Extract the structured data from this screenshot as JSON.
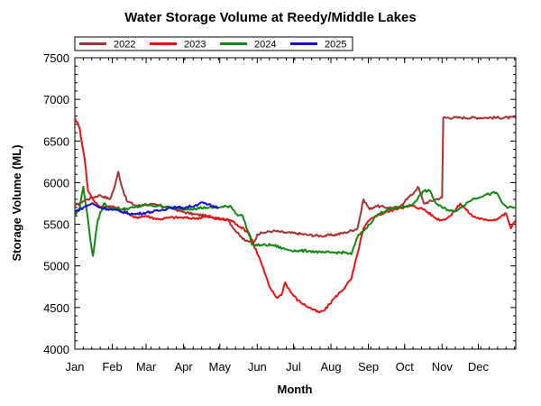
{
  "chart_data": {
    "type": "line",
    "title": "Water Storage Volume at Reedy/Middle Lakes",
    "xlabel": "Month",
    "ylabel": "Storage Volume (ML)",
    "x_tick_labels": [
      "Jan",
      "Feb",
      "Mar",
      "Apr",
      "May",
      "Jun",
      "Jul",
      "Aug",
      "Sep",
      "Oct",
      "Nov",
      "Dec"
    ],
    "x_unit": "day of year",
    "xlim": [
      1,
      366
    ],
    "ylim": [
      4000,
      7500
    ],
    "y_ticks": [
      4000,
      4500,
      5000,
      5500,
      6000,
      6500,
      7000,
      7500
    ],
    "legend_position": "top-left",
    "grid": false,
    "series": [
      {
        "name": "2022",
        "color": "#a83232",
        "points": [
          [
            1,
            5720
          ],
          [
            8,
            5780
          ],
          [
            15,
            5820
          ],
          [
            22,
            5850
          ],
          [
            30,
            5800
          ],
          [
            34,
            5950
          ],
          [
            37,
            6130
          ],
          [
            40,
            5950
          ],
          [
            44,
            5780
          ],
          [
            52,
            5720
          ],
          [
            60,
            5740
          ],
          [
            70,
            5730
          ],
          [
            80,
            5700
          ],
          [
            90,
            5650
          ],
          [
            100,
            5620
          ],
          [
            110,
            5600
          ],
          [
            120,
            5580
          ],
          [
            128,
            5550
          ],
          [
            135,
            5400
          ],
          [
            142,
            5300
          ],
          [
            150,
            5300
          ],
          [
            152,
            5380
          ],
          [
            158,
            5400
          ],
          [
            165,
            5420
          ],
          [
            175,
            5400
          ],
          [
            185,
            5390
          ],
          [
            195,
            5370
          ],
          [
            205,
            5360
          ],
          [
            215,
            5370
          ],
          [
            225,
            5400
          ],
          [
            235,
            5450
          ],
          [
            240,
            5800
          ],
          [
            245,
            5680
          ],
          [
            250,
            5720
          ],
          [
            260,
            5700
          ],
          [
            270,
            5700
          ],
          [
            275,
            5800
          ],
          [
            280,
            5850
          ],
          [
            285,
            5950
          ],
          [
            290,
            5750
          ],
          [
            300,
            5800
          ],
          [
            305,
            5820
          ],
          [
            306,
            6780
          ],
          [
            320,
            6780
          ],
          [
            340,
            6780
          ],
          [
            366,
            6780
          ]
        ]
      },
      {
        "name": "2023",
        "color": "#ee1111",
        "points": [
          [
            1,
            6780
          ],
          [
            5,
            6650
          ],
          [
            9,
            6300
          ],
          [
            12,
            5900
          ],
          [
            16,
            5800
          ],
          [
            22,
            5700
          ],
          [
            30,
            5720
          ],
          [
            40,
            5680
          ],
          [
            50,
            5580
          ],
          [
            60,
            5600
          ],
          [
            70,
            5560
          ],
          [
            80,
            5580
          ],
          [
            90,
            5580
          ],
          [
            100,
            5570
          ],
          [
            110,
            5590
          ],
          [
            120,
            5560
          ],
          [
            130,
            5550
          ],
          [
            135,
            5500
          ],
          [
            145,
            5400
          ],
          [
            155,
            5050
          ],
          [
            162,
            4750
          ],
          [
            168,
            4620
          ],
          [
            172,
            4650
          ],
          [
            175,
            4800
          ],
          [
            180,
            4680
          ],
          [
            186,
            4580
          ],
          [
            195,
            4500
          ],
          [
            203,
            4440
          ],
          [
            208,
            4470
          ],
          [
            215,
            4600
          ],
          [
            225,
            4750
          ],
          [
            230,
            4850
          ],
          [
            235,
            5150
          ],
          [
            240,
            5450
          ],
          [
            245,
            5550
          ],
          [
            250,
            5600
          ],
          [
            260,
            5650
          ],
          [
            270,
            5700
          ],
          [
            280,
            5720
          ],
          [
            290,
            5680
          ],
          [
            300,
            5570
          ],
          [
            305,
            5550
          ],
          [
            312,
            5600
          ],
          [
            320,
            5750
          ],
          [
            330,
            5600
          ],
          [
            340,
            5550
          ],
          [
            350,
            5560
          ],
          [
            358,
            5630
          ],
          [
            362,
            5450
          ],
          [
            366,
            5550
          ]
        ]
      },
      {
        "name": "2024",
        "color": "#118811",
        "points": [
          [
            1,
            5600
          ],
          [
            5,
            5700
          ],
          [
            8,
            5950
          ],
          [
            11,
            5650
          ],
          [
            14,
            5300
          ],
          [
            16,
            5120
          ],
          [
            20,
            5550
          ],
          [
            25,
            5750
          ],
          [
            30,
            5700
          ],
          [
            40,
            5680
          ],
          [
            50,
            5700
          ],
          [
            60,
            5730
          ],
          [
            70,
            5720
          ],
          [
            80,
            5700
          ],
          [
            90,
            5680
          ],
          [
            100,
            5690
          ],
          [
            110,
            5700
          ],
          [
            120,
            5700
          ],
          [
            130,
            5720
          ],
          [
            135,
            5620
          ],
          [
            140,
            5600
          ],
          [
            148,
            5250
          ],
          [
            155,
            5250
          ],
          [
            165,
            5250
          ],
          [
            175,
            5200
          ],
          [
            185,
            5180
          ],
          [
            195,
            5180
          ],
          [
            205,
            5160
          ],
          [
            215,
            5160
          ],
          [
            225,
            5160
          ],
          [
            230,
            5140
          ],
          [
            235,
            5350
          ],
          [
            240,
            5420
          ],
          [
            245,
            5500
          ],
          [
            250,
            5600
          ],
          [
            260,
            5680
          ],
          [
            270,
            5700
          ],
          [
            280,
            5730
          ],
          [
            290,
            5900
          ],
          [
            295,
            5900
          ],
          [
            300,
            5750
          ],
          [
            305,
            5700
          ],
          [
            315,
            5650
          ],
          [
            320,
            5700
          ],
          [
            330,
            5800
          ],
          [
            340,
            5850
          ],
          [
            350,
            5880
          ],
          [
            355,
            5750
          ],
          [
            360,
            5700
          ],
          [
            366,
            5700
          ]
        ]
      },
      {
        "name": "2025",
        "color": "#1111cc",
        "points": [
          [
            1,
            5650
          ],
          [
            8,
            5700
          ],
          [
            15,
            5750
          ],
          [
            22,
            5700
          ],
          [
            30,
            5680
          ],
          [
            40,
            5650
          ],
          [
            50,
            5620
          ],
          [
            60,
            5640
          ],
          [
            70,
            5660
          ],
          [
            80,
            5700
          ],
          [
            90,
            5700
          ],
          [
            100,
            5720
          ],
          [
            105,
            5760
          ],
          [
            110,
            5740
          ],
          [
            115,
            5720
          ],
          [
            120,
            5700
          ]
        ]
      }
    ]
  }
}
